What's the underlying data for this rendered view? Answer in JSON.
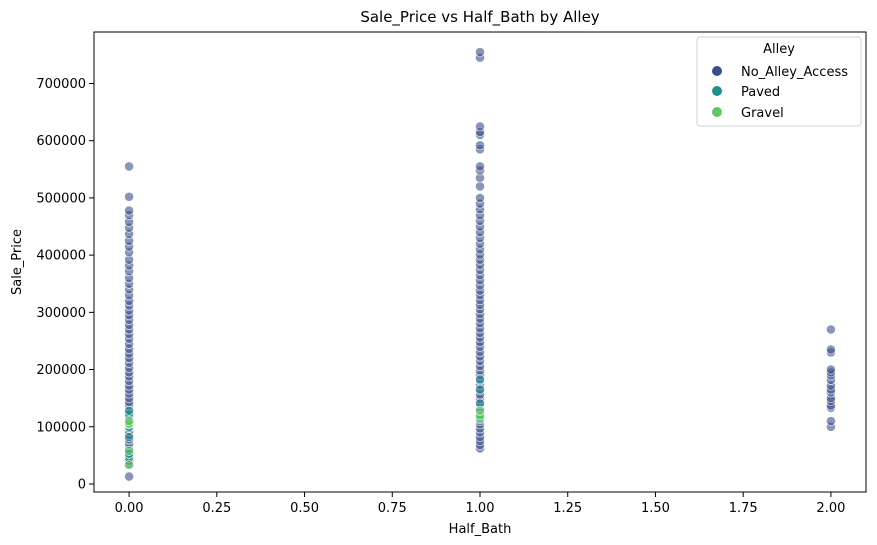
{
  "chart_data": {
    "type": "scatter",
    "title": "Sale_Price vs Half_Bath by Alley",
    "xlabel": "Half_Bath",
    "ylabel": "Sale_Price",
    "xlim": [
      -0.1,
      2.1
    ],
    "ylim": [
      -14000,
      790000
    ],
    "xticks": [
      0.0,
      0.25,
      0.5,
      0.75,
      1.0,
      1.25,
      1.5,
      1.75,
      2.0
    ],
    "xtick_labels": [
      "0.00",
      "0.25",
      "0.50",
      "0.75",
      "1.00",
      "1.25",
      "1.50",
      "1.75",
      "2.00"
    ],
    "yticks": [
      0,
      100000,
      200000,
      300000,
      400000,
      500000,
      600000,
      700000
    ],
    "ytick_labels": [
      "0",
      "100000",
      "200000",
      "300000",
      "400000",
      "500000",
      "600000",
      "700000"
    ],
    "grid": false,
    "legend": {
      "title": "Alley",
      "placement": "top-right"
    },
    "series": [
      {
        "name": "No_Alley_Access",
        "color": "#3b4f8a",
        "points": [
          [
            0,
            13000
          ],
          [
            0,
            35000
          ],
          [
            0,
            40000
          ],
          [
            0,
            52000
          ],
          [
            0,
            61000
          ],
          [
            0,
            70000
          ],
          [
            0,
            78000
          ],
          [
            0,
            86000
          ],
          [
            0,
            92000
          ],
          [
            0,
            98000
          ],
          [
            0,
            108000
          ],
          [
            0,
            112000
          ],
          [
            0,
            118000
          ],
          [
            0,
            124000
          ],
          [
            0,
            130000
          ],
          [
            0,
            137000
          ],
          [
            0,
            143000
          ],
          [
            0,
            150000
          ],
          [
            0,
            158000
          ],
          [
            0,
            165000
          ],
          [
            0,
            172000
          ],
          [
            0,
            180000
          ],
          [
            0,
            188000
          ],
          [
            0,
            195000
          ],
          [
            0,
            203000
          ],
          [
            0,
            212000
          ],
          [
            0,
            220000
          ],
          [
            0,
            228000
          ],
          [
            0,
            236000
          ],
          [
            0,
            245000
          ],
          [
            0,
            254000
          ],
          [
            0,
            262000
          ],
          [
            0,
            270000
          ],
          [
            0,
            278000
          ],
          [
            0,
            287000
          ],
          [
            0,
            295000
          ],
          [
            0,
            303000
          ],
          [
            0,
            312000
          ],
          [
            0,
            320000
          ],
          [
            0,
            330000
          ],
          [
            0,
            340000
          ],
          [
            0,
            350000
          ],
          [
            0,
            360000
          ],
          [
            0,
            372000
          ],
          [
            0,
            382000
          ],
          [
            0,
            392000
          ],
          [
            0,
            405000
          ],
          [
            0,
            415000
          ],
          [
            0,
            425000
          ],
          [
            0,
            437000
          ],
          [
            0,
            448000
          ],
          [
            0,
            458000
          ],
          [
            0,
            470000
          ],
          [
            0,
            478000
          ],
          [
            0,
            502000
          ],
          [
            0,
            555000
          ],
          [
            1,
            62000
          ],
          [
            1,
            68000
          ],
          [
            1,
            75000
          ],
          [
            1,
            82000
          ],
          [
            1,
            90000
          ],
          [
            1,
            97000
          ],
          [
            1,
            104000
          ],
          [
            1,
            110000
          ],
          [
            1,
            124000
          ],
          [
            1,
            132000
          ],
          [
            1,
            140000
          ],
          [
            1,
            148000
          ],
          [
            1,
            156000
          ],
          [
            1,
            165000
          ],
          [
            1,
            173000
          ],
          [
            1,
            181000
          ],
          [
            1,
            190000
          ],
          [
            1,
            198000
          ],
          [
            1,
            206000
          ],
          [
            1,
            215000
          ],
          [
            1,
            223000
          ],
          [
            1,
            231000
          ],
          [
            1,
            240000
          ],
          [
            1,
            248000
          ],
          [
            1,
            256000
          ],
          [
            1,
            264000
          ],
          [
            1,
            272000
          ],
          [
            1,
            281000
          ],
          [
            1,
            289000
          ],
          [
            1,
            297000
          ],
          [
            1,
            305000
          ],
          [
            1,
            313000
          ],
          [
            1,
            321000
          ],
          [
            1,
            330000
          ],
          [
            1,
            338000
          ],
          [
            1,
            347000
          ],
          [
            1,
            356000
          ],
          [
            1,
            365000
          ],
          [
            1,
            374000
          ],
          [
            1,
            383000
          ],
          [
            1,
            392000
          ],
          [
            1,
            401000
          ],
          [
            1,
            410000
          ],
          [
            1,
            420000
          ],
          [
            1,
            430000
          ],
          [
            1,
            440000
          ],
          [
            1,
            450000
          ],
          [
            1,
            460000
          ],
          [
            1,
            470000
          ],
          [
            1,
            480000
          ],
          [
            1,
            490000
          ],
          [
            1,
            500000
          ],
          [
            1,
            520000
          ],
          [
            1,
            535000
          ],
          [
            1,
            548000
          ],
          [
            1,
            555000
          ],
          [
            1,
            585000
          ],
          [
            1,
            592000
          ],
          [
            1,
            610000
          ],
          [
            1,
            615000
          ],
          [
            1,
            625000
          ],
          [
            1,
            745000
          ],
          [
            1,
            755000
          ],
          [
            2,
            100000
          ],
          [
            2,
            110000
          ],
          [
            2,
            133000
          ],
          [
            2,
            137000
          ],
          [
            2,
            145000
          ],
          [
            2,
            150000
          ],
          [
            2,
            160000
          ],
          [
            2,
            165000
          ],
          [
            2,
            172000
          ],
          [
            2,
            182000
          ],
          [
            2,
            190000
          ],
          [
            2,
            195000
          ],
          [
            2,
            200000
          ],
          [
            2,
            230000
          ],
          [
            2,
            235000
          ],
          [
            2,
            270000
          ]
        ]
      },
      {
        "name": "Paved",
        "color": "#21918c",
        "points": [
          [
            0,
            46000
          ],
          [
            0,
            53000
          ],
          [
            0,
            82000
          ],
          [
            0,
            100000
          ],
          [
            0,
            122000
          ],
          [
            0,
            128000
          ],
          [
            1,
            113000
          ],
          [
            1,
            118000
          ],
          [
            1,
            141000
          ],
          [
            1,
            165000
          ],
          [
            1,
            183000
          ]
        ]
      },
      {
        "name": "Gravel",
        "color": "#5ec962",
        "points": [
          [
            0,
            33000
          ],
          [
            0,
            58000
          ],
          [
            0,
            104000
          ],
          [
            0,
            106000
          ],
          [
            0,
            110000
          ],
          [
            1,
            115000
          ],
          [
            1,
            120000
          ],
          [
            1,
            128000
          ]
        ]
      }
    ]
  }
}
